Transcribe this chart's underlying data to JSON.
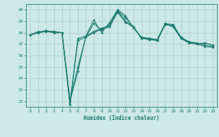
{
  "xlabel": "Humidex (Indice chaleur)",
  "bg_color": "#cce8e8",
  "grid_color": "#aacccc",
  "line_color": "#1a7a6e",
  "xlim": [
    -0.5,
    23.5
  ],
  "ylim": [
    31.5,
    40.5
  ],
  "yticks": [
    32,
    33,
    34,
    35,
    36,
    37,
    38,
    39,
    40
  ],
  "xticks": [
    0,
    1,
    2,
    3,
    4,
    5,
    6,
    7,
    8,
    9,
    10,
    11,
    12,
    13,
    14,
    15,
    16,
    17,
    18,
    19,
    20,
    21,
    22,
    23
  ],
  "series": [
    [
      37.8,
      38.1,
      38.1,
      38.1,
      38.0,
      31.7,
      37.3,
      37.6,
      38.0,
      38.3,
      38.5,
      39.8,
      38.9,
      38.5,
      37.5,
      37.4,
      37.3,
      38.7,
      38.6,
      37.5,
      37.1,
      37.0,
      36.8,
      36.7
    ],
    [
      37.8,
      38.0,
      38.1,
      38.1,
      38.0,
      31.8,
      37.5,
      37.7,
      38.1,
      38.4,
      38.6,
      39.9,
      39.0,
      38.5,
      37.5,
      37.5,
      37.4,
      38.8,
      38.7,
      37.6,
      37.2,
      37.1,
      36.9,
      36.8
    ],
    [
      37.8,
      38.0,
      38.1,
      38.0,
      38.0,
      32.0,
      34.6,
      37.7,
      39.1,
      38.0,
      38.9,
      40.0,
      39.5,
      38.4,
      37.6,
      37.5,
      37.3,
      38.8,
      38.5,
      37.5,
      37.1,
      37.0,
      37.1,
      36.9
    ],
    [
      37.8,
      38.0,
      38.2,
      38.0,
      38.0,
      32.1,
      35.0,
      37.6,
      38.8,
      38.2,
      38.7,
      39.9,
      39.3,
      38.5,
      37.6,
      37.4,
      37.4,
      38.7,
      38.7,
      37.5,
      37.2,
      37.0,
      37.1,
      36.9
    ]
  ]
}
